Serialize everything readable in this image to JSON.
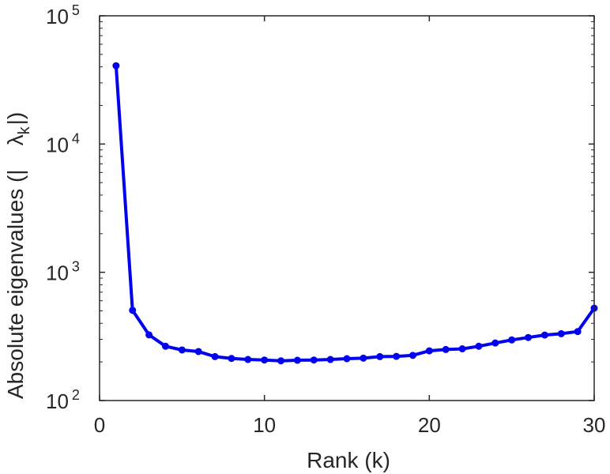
{
  "chart_data": {
    "type": "line",
    "xlabel": "Rank (k)",
    "ylabel": {
      "before": "Absolute eigenvalues (|",
      "symbol": "λ",
      "subscript": "k",
      "after": "|)"
    },
    "y_scale": "log",
    "xlim": [
      0,
      30
    ],
    "ylim": [
      100,
      100000
    ],
    "x_ticks": [
      {
        "value": 0,
        "label": "0"
      },
      {
        "value": 10,
        "label": "10"
      },
      {
        "value": 20,
        "label": "20"
      },
      {
        "value": 30,
        "label": "30"
      }
    ],
    "y_ticks": [
      {
        "value": 100,
        "base": "10",
        "exp": "2"
      },
      {
        "value": 1000,
        "base": "10",
        "exp": "3"
      },
      {
        "value": 10000,
        "base": "10",
        "exp": "4"
      },
      {
        "value": 100000,
        "base": "10",
        "exp": "5"
      }
    ],
    "grid": false,
    "series": [
      {
        "color": "#0000ee",
        "marker": "circle",
        "x": [
          1,
          2,
          3,
          4,
          5,
          6,
          7,
          8,
          9,
          10,
          11,
          12,
          13,
          14,
          15,
          16,
          17,
          18,
          19,
          20,
          21,
          22,
          23,
          24,
          25,
          26,
          27,
          28,
          29,
          30
        ],
        "y": [
          40800,
          505,
          325,
          265,
          248,
          241,
          220,
          213,
          209,
          207,
          204,
          206,
          207,
          209,
          212,
          214,
          220,
          221,
          225,
          244,
          250,
          253,
          265,
          281,
          297,
          310,
          324,
          332,
          345,
          525
        ]
      }
    ]
  }
}
